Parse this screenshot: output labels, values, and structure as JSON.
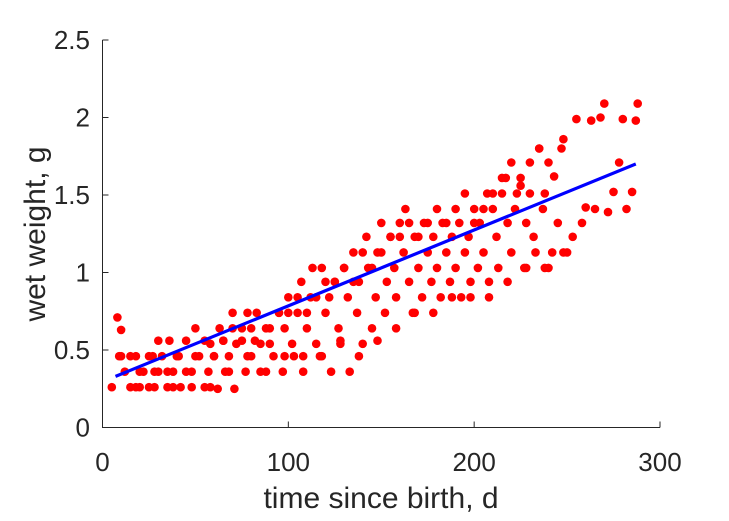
{
  "chart_data": {
    "type": "scatter",
    "xlabel": "time since birth, d",
    "ylabel": "wet weight, g",
    "xlim": [
      0,
      300
    ],
    "ylim": [
      0,
      2.5
    ],
    "xticks": [
      0,
      100,
      200,
      300
    ],
    "xtick_labels": [
      "0",
      "100",
      "200",
      "300"
    ],
    "yticks": [
      0,
      0.5,
      1,
      1.5,
      2,
      2.5
    ],
    "ytick_labels": [
      "0",
      "0.5",
      "1",
      "1.5",
      "2",
      "2.5"
    ],
    "grid": false,
    "marker_color": "#ff0000",
    "line_color": "#0000ff",
    "series": [
      {
        "kind": "points",
        "x": [
          5,
          8,
          9,
          10,
          12,
          15,
          18,
          20,
          22,
          25,
          27,
          28,
          30,
          32,
          35,
          36,
          38,
          41,
          42,
          45,
          48,
          50,
          52,
          55,
          57,
          58,
          60,
          62,
          63,
          65,
          66,
          68,
          70,
          71,
          72,
          75,
          77,
          78,
          80,
          82,
          83,
          85,
          88,
          90,
          92,
          95,
          97,
          98,
          100,
          102,
          103,
          105,
          107,
          108,
          110,
          112,
          113,
          115,
          117,
          118,
          120,
          122,
          123,
          125,
          127,
          128,
          130,
          132,
          133,
          135,
          137,
          138,
          140,
          142,
          143,
          145,
          147,
          148,
          150,
          152,
          153,
          155,
          157,
          158,
          160,
          162,
          163,
          165,
          167,
          168,
          170,
          172,
          173,
          175,
          177,
          178,
          180,
          182,
          183,
          185,
          187,
          188,
          190,
          192,
          193,
          195,
          197,
          198,
          200,
          202,
          203,
          205,
          207,
          208,
          210,
          212,
          213,
          215,
          217,
          218,
          220,
          222,
          223,
          225,
          227,
          228,
          230,
          232,
          233,
          235,
          237,
          238,
          240,
          242,
          243,
          245,
          247,
          248,
          250,
          253,
          255,
          258,
          260,
          263,
          265,
          268,
          270,
          272,
          275,
          278,
          280,
          282,
          285,
          287,
          288,
          10,
          15,
          20,
          25,
          30,
          35,
          40,
          45,
          50,
          55,
          60,
          65,
          70,
          75,
          80,
          85,
          90,
          95,
          100,
          105,
          110,
          115,
          120,
          125,
          130,
          135,
          140,
          145,
          150,
          155,
          160,
          165,
          170,
          175,
          180,
          185,
          190,
          195,
          200,
          205,
          210,
          215,
          220,
          225,
          230,
          235,
          240,
          18,
          28,
          38,
          48,
          58,
          68,
          78,
          88,
          98,
          108,
          118,
          128,
          138,
          148,
          158,
          168,
          178,
          188,
          198,
          208,
          218,
          228,
          238,
          248
        ],
        "y": [
          0.26,
          0.71,
          0.46,
          0.63,
          0.36,
          0.26,
          0.46,
          0.26,
          0.36,
          0.26,
          0.46,
          0.36,
          0.56,
          0.46,
          0.26,
          0.56,
          0.36,
          0.46,
          0.26,
          0.56,
          0.36,
          0.64,
          0.46,
          0.26,
          0.36,
          0.54,
          0.46,
          0.25,
          0.64,
          0.56,
          0.36,
          0.46,
          0.74,
          0.25,
          0.54,
          0.64,
          0.36,
          0.74,
          0.46,
          0.56,
          0.74,
          0.36,
          0.64,
          0.54,
          0.46,
          0.74,
          0.36,
          0.64,
          0.84,
          0.54,
          0.46,
          0.74,
          0.94,
          0.36,
          0.64,
          0.84,
          1.03,
          0.54,
          0.46,
          1.03,
          0.74,
          0.84,
          0.36,
          0.94,
          0.64,
          0.54,
          1.03,
          0.84,
          0.36,
          1.13,
          0.74,
          0.94,
          0.54,
          1.23,
          1.03,
          0.64,
          0.84,
          1.13,
          1.32,
          0.74,
          0.94,
          1.23,
          1.03,
          0.84,
          1.32,
          1.13,
          1.41,
          0.94,
          0.74,
          1.23,
          1.03,
          0.84,
          1.32,
          1.13,
          0.94,
          1.23,
          1.03,
          0.84,
          1.32,
          1.13,
          0.94,
          1.23,
          1.03,
          1.32,
          0.84,
          1.13,
          1.23,
          0.94,
          1.41,
          1.03,
          1.32,
          1.13,
          1.51,
          0.84,
          1.41,
          1.23,
          1.03,
          1.51,
          1.61,
          1.32,
          1.13,
          1.41,
          1.51,
          1.61,
          1.03,
          1.32,
          1.71,
          1.23,
          1.13,
          1.8,
          1.41,
          1.51,
          1.03,
          1.13,
          1.62,
          1.32,
          1.8,
          1.86,
          1.13,
          1.23,
          1.99,
          1.32,
          1.42,
          1.98,
          1.41,
          2.0,
          2.09,
          1.39,
          1.52,
          1.71,
          1.99,
          1.41,
          1.52,
          1.98,
          2.09,
          0.46,
          0.46,
          0.36,
          0.46,
          0.36,
          0.36,
          0.46,
          0.36,
          0.46,
          0.56,
          0.46,
          0.56,
          0.64,
          0.56,
          0.64,
          0.54,
          0.64,
          0.74,
          0.74,
          0.84,
          0.74,
          0.84,
          0.94,
          0.94,
          1.03,
          0.94,
          1.13,
          1.03,
          1.13,
          1.23,
          1.23,
          1.32,
          1.23,
          1.32,
          1.41,
          1.32,
          1.41,
          1.51,
          1.32,
          1.41,
          1.51,
          1.61,
          1.71,
          1.56,
          1.51,
          1.8,
          1.71,
          0.26,
          0.26,
          0.26,
          0.26,
          0.26,
          0.36,
          0.46,
          0.36,
          0.46,
          0.46,
          0.46,
          0.56,
          0.46,
          0.56,
          0.64,
          0.74,
          0.74,
          0.84,
          0.84,
          0.94,
          0.94,
          1.03,
          1.03,
          1.13
        ]
      },
      {
        "kind": "line",
        "x": [
          7,
          287
        ],
        "y": [
          0.33,
          1.7
        ]
      }
    ]
  }
}
